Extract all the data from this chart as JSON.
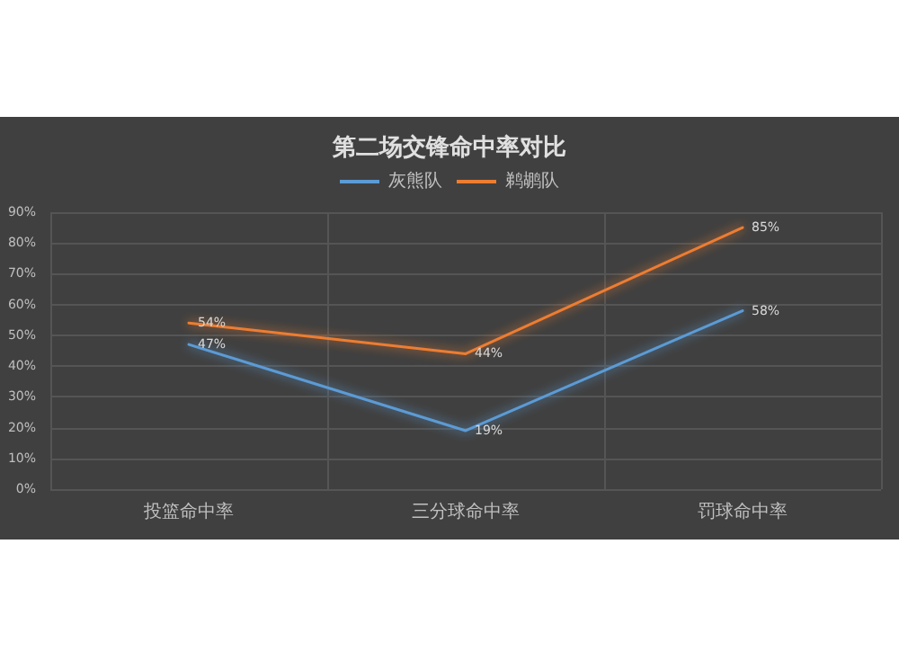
{
  "chart_data": {
    "type": "line",
    "title": "第二场交锋命中率对比",
    "categories": [
      "投篮命中率",
      "三分球命中率",
      "罚球命中率"
    ],
    "series": [
      {
        "name": "灰熊队",
        "color": "#5b9bd5",
        "values": [
          47,
          19,
          58
        ],
        "value_labels": [
          "47%",
          "19%",
          "58%"
        ]
      },
      {
        "name": "鹈鹕队",
        "color": "#ed7d31",
        "values": [
          54,
          44,
          85
        ],
        "value_labels": [
          "54%",
          "44%",
          "85%"
        ]
      }
    ],
    "ylim": [
      0,
      90
    ],
    "yticks": [
      {
        "value": 0,
        "label": "0%"
      },
      {
        "value": 10,
        "label": "10%"
      },
      {
        "value": 20,
        "label": "20%"
      },
      {
        "value": 30,
        "label": "30%"
      },
      {
        "value": 40,
        "label": "40%"
      },
      {
        "value": 50,
        "label": "50%"
      },
      {
        "value": 60,
        "label": "60%"
      },
      {
        "value": 70,
        "label": "70%"
      },
      {
        "value": 80,
        "label": "80%"
      },
      {
        "value": 90,
        "label": "90%"
      }
    ],
    "grid": true,
    "legend": "top",
    "marker": "none",
    "line_style": "solid"
  }
}
